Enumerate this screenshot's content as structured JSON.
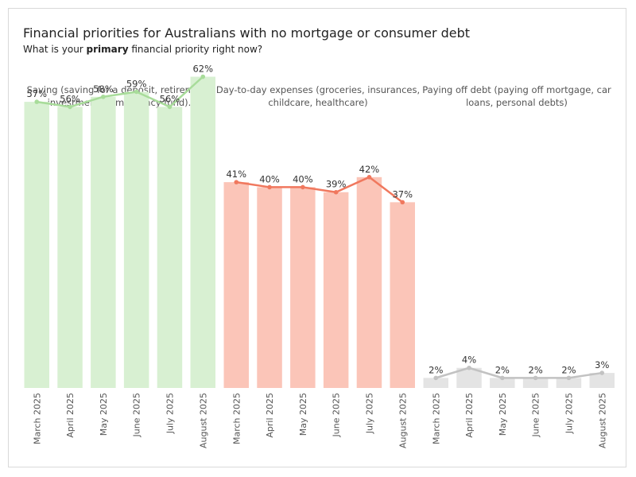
{
  "header": {
    "title": "Financial priorities for Australians with no mortgage or consumer debt",
    "subtitle_pre": "What is your ",
    "subtitle_bold": "primary",
    "subtitle_post": " financial priority right now?"
  },
  "chart_data": {
    "type": "bar",
    "categories": [
      "March 2025",
      "April 2025",
      "May 2025",
      "June 2025",
      "July 2025",
      "August 2025"
    ],
    "ylim": [
      0,
      70
    ],
    "grid": false,
    "legend": "none",
    "panels": [
      {
        "heading": [
          "Saving (saving for a deposit, retirement,",
          "investments, emergency fund)."
        ],
        "values": [
          57,
          56,
          58,
          59,
          56,
          62
        ],
        "labels": [
          "57%",
          "56%",
          "58%",
          "59%",
          "56%",
          "62%"
        ],
        "bar_color": "#d8f0d2",
        "line_color": "#a8dc9a"
      },
      {
        "heading": [
          "Day-to-day expenses (groceries, insurances,",
          "childcare, healthcare)"
        ],
        "values": [
          41,
          40,
          40,
          39,
          42,
          37
        ],
        "labels": [
          "41%",
          "40%",
          "40%",
          "39%",
          "42%",
          "37%"
        ],
        "bar_color": "#fbc5b8",
        "line_color": "#f0785e"
      },
      {
        "heading": [
          "Paying off debt (paying off mortgage, car",
          "loans, personal debts)"
        ],
        "values": [
          2,
          4,
          2,
          2,
          2,
          3
        ],
        "labels": [
          "2%",
          "4%",
          "2%",
          "2%",
          "2%",
          "3%"
        ],
        "bar_color": "#e4e4e4",
        "line_color": "#c2c2c2"
      }
    ]
  }
}
